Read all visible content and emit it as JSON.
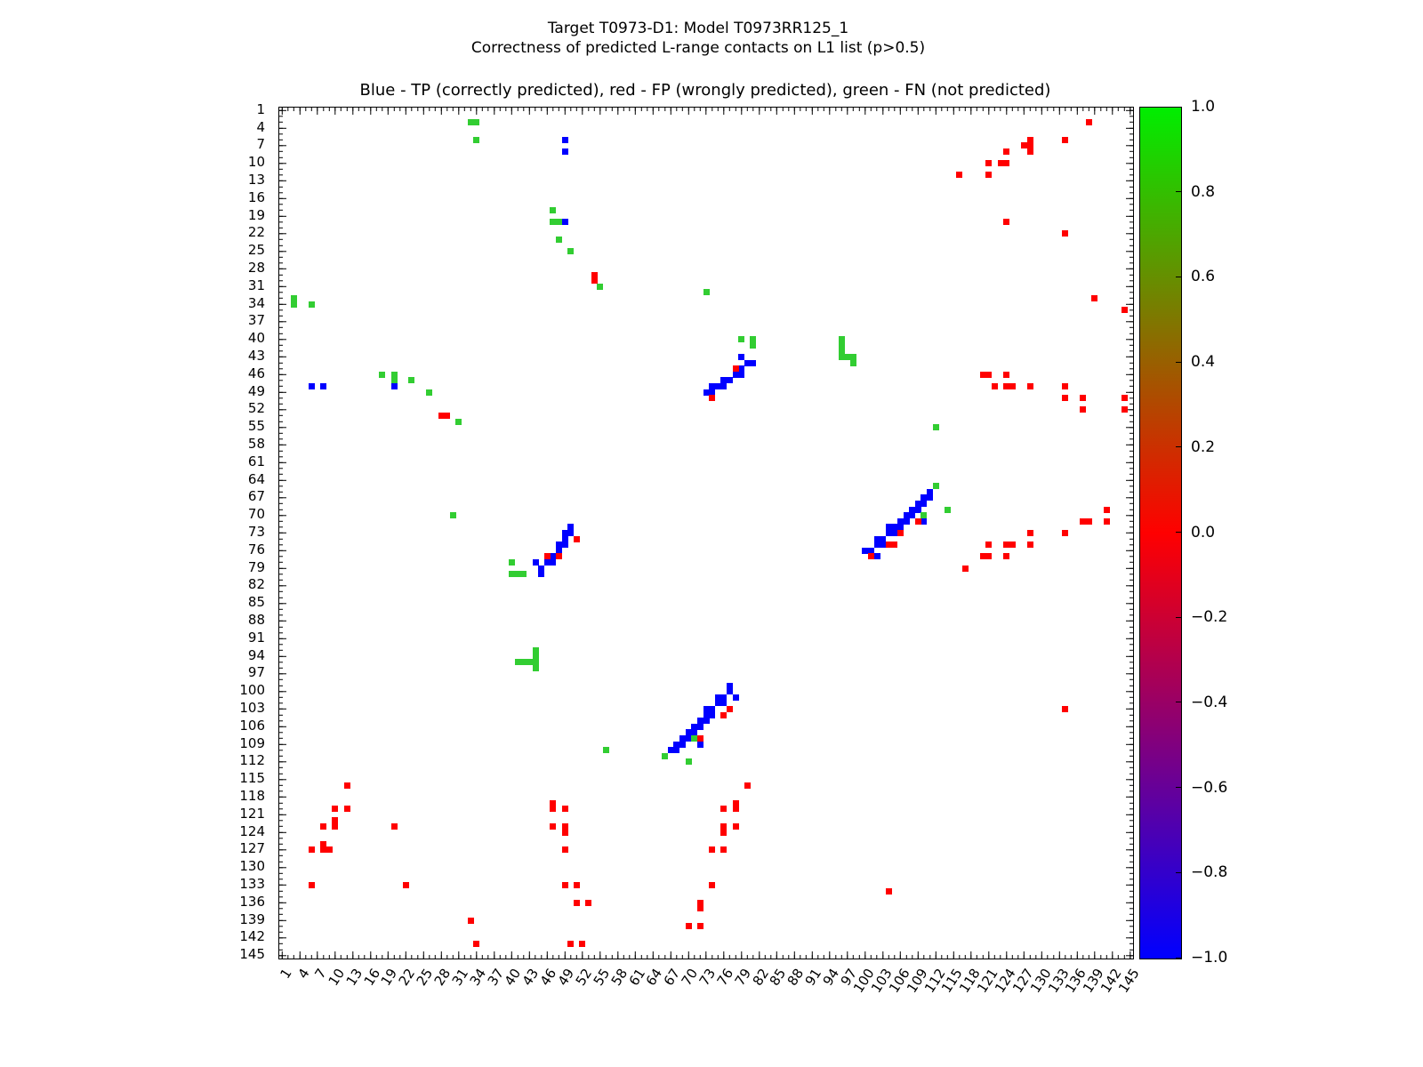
{
  "figure": {
    "title": "Target T0973-D1: Model T0973RR125_1",
    "subtitle": "Correctness of predicted L-range contacts on L1 list (p>0.5)",
    "axes_title": "Blue - TP (correctly predicted), red - FP (wrongly predicted), green - FN (not predicted)"
  },
  "chart_data": {
    "type": "heatmap",
    "subtype": "contact-map",
    "title": "Blue - TP (correctly predicted), red - FP (wrongly predicted), green - FN (not predicted)",
    "xlabel": "",
    "ylabel": "",
    "n_residues": 145,
    "axis_range": [
      1,
      145
    ],
    "grid": false,
    "axis_ticks": [
      1,
      4,
      7,
      10,
      13,
      16,
      19,
      22,
      25,
      28,
      31,
      34,
      37,
      40,
      43,
      46,
      49,
      52,
      55,
      58,
      61,
      64,
      67,
      70,
      73,
      76,
      79,
      82,
      85,
      88,
      91,
      94,
      97,
      100,
      103,
      106,
      109,
      112,
      115,
      118,
      121,
      124,
      127,
      130,
      133,
      136,
      139,
      142,
      145
    ],
    "colors": {
      "tp": "#0000ff",
      "fp": "#ff0000",
      "fn": "#32cd32"
    },
    "legend": [
      {
        "label": "TP (correctly predicted)",
        "color": "#0000ff"
      },
      {
        "label": "FP (wrongly predicted)",
        "color": "#ff0000"
      },
      {
        "label": "FN (not predicted)",
        "color": "#32cd32"
      }
    ],
    "colorbar": {
      "min": -1.0,
      "max": 1.0,
      "position": "right",
      "ticks": [
        "1.0",
        "0.8",
        "0.6",
        "0.4",
        "0.2",
        "0.0",
        "−0.2",
        "−0.4",
        "−0.6",
        "−0.8",
        "−1.0"
      ],
      "gradient": [
        "#00ee00",
        "#ff0000",
        "#0000ff"
      ]
    },
    "cells": {
      "tp": [
        [
          49,
          6
        ],
        [
          49,
          8
        ],
        [
          49,
          20
        ],
        [
          6,
          48
        ],
        [
          8,
          48
        ],
        [
          20,
          48
        ],
        [
          79,
          43
        ],
        [
          80,
          44
        ],
        [
          81,
          44
        ],
        [
          79,
          45
        ],
        [
          79,
          46
        ],
        [
          78,
          46
        ],
        [
          76,
          47
        ],
        [
          77,
          47
        ],
        [
          74,
          48
        ],
        [
          75,
          48
        ],
        [
          76,
          48
        ],
        [
          73,
          49
        ],
        [
          74,
          49
        ],
        [
          50,
          72
        ],
        [
          50,
          73
        ],
        [
          49,
          73
        ],
        [
          49,
          74
        ],
        [
          49,
          75
        ],
        [
          48,
          75
        ],
        [
          48,
          76
        ],
        [
          47,
          77
        ],
        [
          47,
          78
        ],
        [
          46,
          78
        ],
        [
          44,
          78
        ],
        [
          45,
          79
        ],
        [
          45,
          80
        ],
        [
          111,
          66
        ],
        [
          110,
          67
        ],
        [
          111,
          67
        ],
        [
          109,
          68
        ],
        [
          110,
          68
        ],
        [
          108,
          69
        ],
        [
          109,
          69
        ],
        [
          107,
          70
        ],
        [
          108,
          70
        ],
        [
          110,
          71
        ],
        [
          106,
          71
        ],
        [
          107,
          71
        ],
        [
          104,
          72
        ],
        [
          105,
          72
        ],
        [
          106,
          72
        ],
        [
          104,
          73
        ],
        [
          105,
          73
        ],
        [
          102,
          74
        ],
        [
          103,
          74
        ],
        [
          102,
          75
        ],
        [
          103,
          75
        ],
        [
          100,
          76
        ],
        [
          101,
          76
        ],
        [
          102,
          77
        ],
        [
          77,
          99
        ],
        [
          77,
          100
        ],
        [
          78,
          101
        ],
        [
          75,
          101
        ],
        [
          76,
          101
        ],
        [
          75,
          102
        ],
        [
          76,
          102
        ],
        [
          73,
          103
        ],
        [
          74,
          103
        ],
        [
          73,
          104
        ],
        [
          74,
          104
        ],
        [
          72,
          105
        ],
        [
          73,
          105
        ],
        [
          71,
          106
        ],
        [
          72,
          106
        ],
        [
          71,
          107
        ],
        [
          70,
          107
        ],
        [
          69,
          108
        ],
        [
          70,
          108
        ],
        [
          68,
          109
        ],
        [
          69,
          109
        ],
        [
          72,
          109
        ],
        [
          67,
          110
        ],
        [
          68,
          110
        ]
      ],
      "fp": [
        [
          54,
          29
        ],
        [
          54,
          30
        ],
        [
          28,
          53
        ],
        [
          29,
          53
        ],
        [
          78,
          45
        ],
        [
          74,
          50
        ],
        [
          46,
          77
        ],
        [
          48,
          77
        ],
        [
          51,
          74
        ],
        [
          109,
          71
        ],
        [
          106,
          73
        ],
        [
          104,
          75
        ],
        [
          105,
          75
        ],
        [
          101,
          77
        ],
        [
          77,
          103
        ],
        [
          76,
          104
        ],
        [
          72,
          108
        ],
        [
          138,
          3
        ],
        [
          128,
          6
        ],
        [
          134,
          6
        ],
        [
          127,
          7
        ],
        [
          128,
          7
        ],
        [
          124,
          8
        ],
        [
          128,
          8
        ],
        [
          121,
          10
        ],
        [
          123,
          10
        ],
        [
          124,
          10
        ],
        [
          116,
          12
        ],
        [
          121,
          12
        ],
        [
          124,
          20
        ],
        [
          134,
          22
        ],
        [
          12,
          116
        ],
        [
          10,
          120
        ],
        [
          12,
          120
        ],
        [
          10,
          122
        ],
        [
          10,
          123
        ],
        [
          8,
          123
        ],
        [
          20,
          123
        ],
        [
          8,
          126
        ],
        [
          8,
          127
        ],
        [
          9,
          127
        ],
        [
          6,
          127
        ],
        [
          6,
          133
        ],
        [
          22,
          133
        ],
        [
          47,
          119
        ],
        [
          47,
          120
        ],
        [
          49,
          120
        ],
        [
          47,
          123
        ],
        [
          49,
          123
        ],
        [
          49,
          124
        ],
        [
          49,
          127
        ],
        [
          49,
          133
        ],
        [
          51,
          133
        ],
        [
          51,
          136
        ],
        [
          53,
          136
        ],
        [
          120,
          46
        ],
        [
          121,
          46
        ],
        [
          124,
          46
        ],
        [
          122,
          48
        ],
        [
          124,
          48
        ],
        [
          125,
          48
        ],
        [
          128,
          48
        ],
        [
          134,
          48
        ],
        [
          134,
          50
        ],
        [
          137,
          50
        ],
        [
          137,
          52
        ],
        [
          144,
          50
        ],
        [
          144,
          52
        ],
        [
          80,
          116
        ],
        [
          78,
          119
        ],
        [
          76,
          120
        ],
        [
          78,
          120
        ],
        [
          76,
          123
        ],
        [
          78,
          123
        ],
        [
          76,
          124
        ],
        [
          74,
          127
        ],
        [
          76,
          127
        ],
        [
          74,
          133
        ],
        [
          72,
          136
        ],
        [
          72,
          137
        ],
        [
          70,
          140
        ],
        [
          72,
          140
        ],
        [
          141,
          69
        ],
        [
          137,
          71
        ],
        [
          138,
          71
        ],
        [
          141,
          71
        ],
        [
          134,
          73
        ],
        [
          128,
          73
        ],
        [
          128,
          75
        ],
        [
          121,
          75
        ],
        [
          124,
          75
        ],
        [
          125,
          75
        ],
        [
          120,
          77
        ],
        [
          121,
          77
        ],
        [
          124,
          77
        ],
        [
          117,
          79
        ],
        [
          139,
          33
        ],
        [
          144,
          35
        ],
        [
          134,
          103
        ],
        [
          33,
          139
        ],
        [
          34,
          143
        ],
        [
          50,
          143
        ],
        [
          52,
          143
        ],
        [
          104,
          134
        ]
      ],
      "fn": [
        [
          33,
          3
        ],
        [
          34,
          3
        ],
        [
          34,
          6
        ],
        [
          47,
          18
        ],
        [
          47,
          20
        ],
        [
          48,
          20
        ],
        [
          48,
          23
        ],
        [
          50,
          25
        ],
        [
          55,
          31
        ],
        [
          3,
          33
        ],
        [
          3,
          34
        ],
        [
          6,
          34
        ],
        [
          18,
          46
        ],
        [
          20,
          46
        ],
        [
          20,
          47
        ],
        [
          23,
          47
        ],
        [
          26,
          49
        ],
        [
          31,
          54
        ],
        [
          73,
          32
        ],
        [
          79,
          40
        ],
        [
          81,
          40
        ],
        [
          81,
          41
        ],
        [
          30,
          70
        ],
        [
          40,
          78
        ],
        [
          40,
          80
        ],
        [
          41,
          80
        ],
        [
          42,
          80
        ],
        [
          96,
          40
        ],
        [
          96,
          41
        ],
        [
          96,
          42
        ],
        [
          96,
          43
        ],
        [
          97,
          43
        ],
        [
          98,
          43
        ],
        [
          98,
          44
        ],
        [
          44,
          93
        ],
        [
          44,
          94
        ],
        [
          41,
          95
        ],
        [
          42,
          95
        ],
        [
          43,
          95
        ],
        [
          44,
          95
        ],
        [
          44,
          96
        ],
        [
          112,
          55
        ],
        [
          112,
          65
        ],
        [
          114,
          69
        ],
        [
          110,
          70
        ],
        [
          56,
          110
        ],
        [
          66,
          111
        ],
        [
          70,
          112
        ],
        [
          71,
          108
        ]
      ]
    }
  }
}
